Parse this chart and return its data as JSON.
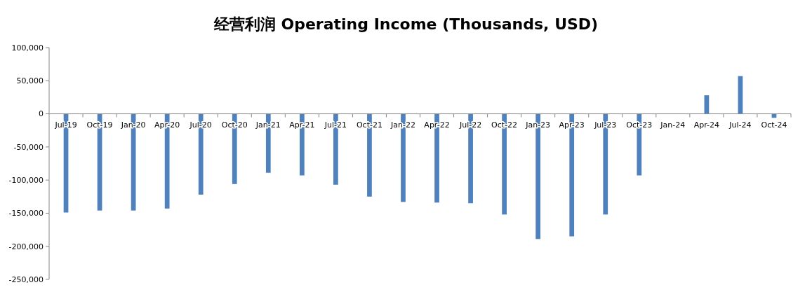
{
  "chart_data": {
    "type": "bar",
    "title": "经营利润 Operating Income (Thousands, USD)",
    "categories": [
      "Jul-19",
      "Oct-19",
      "Jan-20",
      "Apr-20",
      "Jul-20",
      "Oct-20",
      "Jan-21",
      "Apr-21",
      "Jul-21",
      "Oct-21",
      "Jan-22",
      "Apr-22",
      "Jul-22",
      "Oct-22",
      "Jan-23",
      "Apr-23",
      "Jul-23",
      "Oct-23",
      "Jan-24",
      "Apr-24",
      "Jul-24",
      "Oct-24"
    ],
    "values": [
      -149000,
      -146000,
      -146000,
      -143000,
      -122000,
      -106000,
      -89000,
      -93000,
      -107000,
      -125000,
      -133000,
      -134000,
      -135000,
      -152000,
      -189000,
      -185000,
      -152000,
      -93000,
      null,
      28000,
      57000,
      -6000
    ],
    "color": "#4f81bd",
    "ylim": [
      -250000,
      100000
    ],
    "yticks": [
      {
        "value": -250000,
        "label": "-250,000"
      },
      {
        "value": -200000,
        "label": "-200,000"
      },
      {
        "value": -150000,
        "label": "-150,000"
      },
      {
        "value": -100000,
        "label": "-100,000"
      },
      {
        "value": -50000,
        "label": "-50,000"
      },
      {
        "value": 0,
        "label": "0"
      },
      {
        "value": 50000,
        "label": "50,000"
      },
      {
        "value": 100000,
        "label": "100,000"
      }
    ],
    "grid": false
  }
}
